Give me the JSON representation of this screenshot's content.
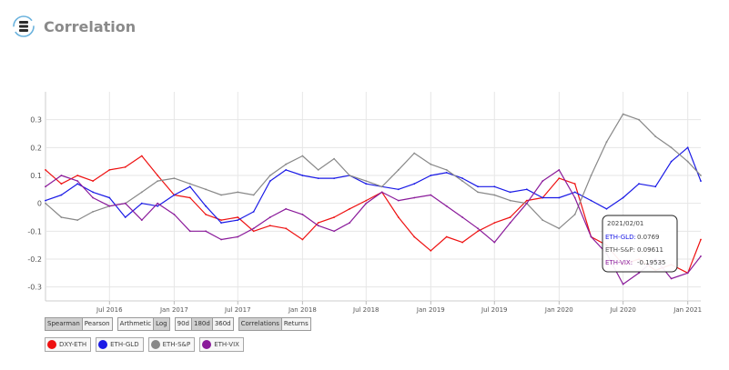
{
  "header": {
    "title": "Correlation"
  },
  "chart_data": {
    "type": "line",
    "ylim": [
      -0.35,
      0.4
    ],
    "y_ticks": [
      {
        "value": 0.3,
        "label": "0.3"
      },
      {
        "value": 0.2,
        "label": "0.2"
      },
      {
        "value": 0.1,
        "label": "0.1"
      },
      {
        "value": 0,
        "label": "0"
      },
      {
        "value": -0.1,
        "label": "-0.1"
      },
      {
        "value": -0.2,
        "label": "-0.2"
      },
      {
        "value": -0.3,
        "label": "-0.3"
      }
    ],
    "x_start": "2016-01-01",
    "x_end": "2021-02-07",
    "x_ticks": [
      {
        "date": "2016-07-01",
        "label": "Jul 2016"
      },
      {
        "date": "2017-01-01",
        "label": "Jan 2017"
      },
      {
        "date": "2017-07-01",
        "label": "Jul 2017"
      },
      {
        "date": "2018-01-01",
        "label": "Jan 2018"
      },
      {
        "date": "2018-07-01",
        "label": "Jul 2018"
      },
      {
        "date": "2019-01-01",
        "label": "Jan 2019"
      },
      {
        "date": "2019-07-01",
        "label": "Jul 2019"
      },
      {
        "date": "2020-01-01",
        "label": "Jan 2020"
      },
      {
        "date": "2020-07-01",
        "label": "Jul 2020"
      },
      {
        "date": "2021-01-01",
        "label": "Jan 2021"
      }
    ],
    "grid": true,
    "series": [
      {
        "name": "DXY-ETH",
        "color": "#ee1111",
        "values": [
          [
            "2016-01-01",
            0.12
          ],
          [
            "2016-02-15",
            0.07
          ],
          [
            "2016-04-01",
            0.1
          ],
          [
            "2016-05-15",
            0.08
          ],
          [
            "2016-07-01",
            0.12
          ],
          [
            "2016-08-15",
            0.13
          ],
          [
            "2016-10-01",
            0.17
          ],
          [
            "2016-11-15",
            0.1
          ],
          [
            "2017-01-01",
            0.03
          ],
          [
            "2017-02-15",
            0.02
          ],
          [
            "2017-04-01",
            -0.04
          ],
          [
            "2017-05-15",
            -0.06
          ],
          [
            "2017-07-01",
            -0.05
          ],
          [
            "2017-08-15",
            -0.1
          ],
          [
            "2017-10-01",
            -0.08
          ],
          [
            "2017-11-15",
            -0.09
          ],
          [
            "2018-01-01",
            -0.13
          ],
          [
            "2018-02-15",
            -0.07
          ],
          [
            "2018-04-01",
            -0.05
          ],
          [
            "2018-05-15",
            -0.02
          ],
          [
            "2018-07-01",
            0.01
          ],
          [
            "2018-08-15",
            0.04
          ],
          [
            "2018-10-01",
            -0.05
          ],
          [
            "2018-11-15",
            -0.12
          ],
          [
            "2019-01-01",
            -0.17
          ],
          [
            "2019-02-15",
            -0.12
          ],
          [
            "2019-04-01",
            -0.14
          ],
          [
            "2019-05-15",
            -0.1
          ],
          [
            "2019-07-01",
            -0.07
          ],
          [
            "2019-08-15",
            -0.05
          ],
          [
            "2019-10-01",
            0.01
          ],
          [
            "2019-11-15",
            0.02
          ],
          [
            "2020-01-01",
            0.09
          ],
          [
            "2020-02-15",
            0.07
          ],
          [
            "2020-04-01",
            -0.12
          ],
          [
            "2020-05-15",
            -0.15
          ],
          [
            "2020-07-01",
            -0.22
          ],
          [
            "2020-08-15",
            -0.2
          ],
          [
            "2020-10-01",
            -0.24
          ],
          [
            "2020-11-15",
            -0.22
          ],
          [
            "2021-01-01",
            -0.25
          ],
          [
            "2021-02-07",
            -0.13
          ]
        ]
      },
      {
        "name": "ETH-GLD",
        "color": "#1a1ae6",
        "values": [
          [
            "2016-01-01",
            0.01
          ],
          [
            "2016-02-15",
            0.03
          ],
          [
            "2016-04-01",
            0.07
          ],
          [
            "2016-05-15",
            0.04
          ],
          [
            "2016-07-01",
            0.02
          ],
          [
            "2016-08-15",
            -0.05
          ],
          [
            "2016-10-01",
            0.0
          ],
          [
            "2016-11-15",
            -0.01
          ],
          [
            "2017-01-01",
            0.03
          ],
          [
            "2017-02-15",
            0.06
          ],
          [
            "2017-04-01",
            -0.01
          ],
          [
            "2017-05-15",
            -0.07
          ],
          [
            "2017-07-01",
            -0.06
          ],
          [
            "2017-08-15",
            -0.03
          ],
          [
            "2017-10-01",
            0.08
          ],
          [
            "2017-11-15",
            0.12
          ],
          [
            "2018-01-01",
            0.1
          ],
          [
            "2018-02-15",
            0.09
          ],
          [
            "2018-04-01",
            0.09
          ],
          [
            "2018-05-15",
            0.1
          ],
          [
            "2018-07-01",
            0.07
          ],
          [
            "2018-08-15",
            0.06
          ],
          [
            "2018-10-01",
            0.05
          ],
          [
            "2018-11-15",
            0.07
          ],
          [
            "2019-01-01",
            0.1
          ],
          [
            "2019-02-15",
            0.11
          ],
          [
            "2019-04-01",
            0.09
          ],
          [
            "2019-05-15",
            0.06
          ],
          [
            "2019-07-01",
            0.06
          ],
          [
            "2019-08-15",
            0.04
          ],
          [
            "2019-10-01",
            0.05
          ],
          [
            "2019-11-15",
            0.02
          ],
          [
            "2020-01-01",
            0.02
          ],
          [
            "2020-02-15",
            0.04
          ],
          [
            "2020-04-01",
            0.01
          ],
          [
            "2020-05-15",
            -0.02
          ],
          [
            "2020-07-01",
            0.02
          ],
          [
            "2020-08-15",
            0.07
          ],
          [
            "2020-10-01",
            0.06
          ],
          [
            "2020-11-15",
            0.15
          ],
          [
            "2021-01-01",
            0.2
          ],
          [
            "2021-02-07",
            0.08
          ]
        ]
      },
      {
        "name": "ETH-S&P",
        "color": "#888888",
        "values": [
          [
            "2016-01-01",
            0.0
          ],
          [
            "2016-02-15",
            -0.05
          ],
          [
            "2016-04-01",
            -0.06
          ],
          [
            "2016-05-15",
            -0.03
          ],
          [
            "2016-07-01",
            -0.01
          ],
          [
            "2016-08-15",
            0.0
          ],
          [
            "2016-10-01",
            0.04
          ],
          [
            "2016-11-15",
            0.08
          ],
          [
            "2017-01-01",
            0.09
          ],
          [
            "2017-02-15",
            0.07
          ],
          [
            "2017-04-01",
            0.05
          ],
          [
            "2017-05-15",
            0.03
          ],
          [
            "2017-07-01",
            0.04
          ],
          [
            "2017-08-15",
            0.03
          ],
          [
            "2017-10-01",
            0.1
          ],
          [
            "2017-11-15",
            0.14
          ],
          [
            "2018-01-01",
            0.17
          ],
          [
            "2018-02-15",
            0.12
          ],
          [
            "2018-04-01",
            0.16
          ],
          [
            "2018-05-15",
            0.1
          ],
          [
            "2018-07-01",
            0.08
          ],
          [
            "2018-08-15",
            0.06
          ],
          [
            "2018-10-01",
            0.12
          ],
          [
            "2018-11-15",
            0.18
          ],
          [
            "2019-01-01",
            0.14
          ],
          [
            "2019-02-15",
            0.12
          ],
          [
            "2019-04-01",
            0.08
          ],
          [
            "2019-05-15",
            0.04
          ],
          [
            "2019-07-01",
            0.03
          ],
          [
            "2019-08-15",
            0.01
          ],
          [
            "2019-10-01",
            0.0
          ],
          [
            "2019-11-15",
            -0.06
          ],
          [
            "2020-01-01",
            -0.09
          ],
          [
            "2020-02-15",
            -0.04
          ],
          [
            "2020-04-01",
            0.1
          ],
          [
            "2020-05-15",
            0.22
          ],
          [
            "2020-07-01",
            0.32
          ],
          [
            "2020-08-15",
            0.3
          ],
          [
            "2020-10-01",
            0.24
          ],
          [
            "2020-11-15",
            0.2
          ],
          [
            "2021-01-01",
            0.15
          ],
          [
            "2021-02-07",
            0.1
          ]
        ]
      },
      {
        "name": "ETH-VIX",
        "color": "#8a1a9a",
        "values": [
          [
            "2016-01-01",
            0.06
          ],
          [
            "2016-02-15",
            0.1
          ],
          [
            "2016-04-01",
            0.08
          ],
          [
            "2016-05-15",
            0.02
          ],
          [
            "2016-07-01",
            -0.01
          ],
          [
            "2016-08-15",
            0.0
          ],
          [
            "2016-10-01",
            -0.06
          ],
          [
            "2016-11-15",
            0.0
          ],
          [
            "2017-01-01",
            -0.04
          ],
          [
            "2017-02-15",
            -0.1
          ],
          [
            "2017-04-01",
            -0.1
          ],
          [
            "2017-05-15",
            -0.13
          ],
          [
            "2017-07-01",
            -0.12
          ],
          [
            "2017-08-15",
            -0.09
          ],
          [
            "2017-10-01",
            -0.05
          ],
          [
            "2017-11-15",
            -0.02
          ],
          [
            "2018-01-01",
            -0.04
          ],
          [
            "2018-02-15",
            -0.08
          ],
          [
            "2018-04-01",
            -0.1
          ],
          [
            "2018-05-15",
            -0.07
          ],
          [
            "2018-07-01",
            0.0
          ],
          [
            "2018-08-15",
            0.04
          ],
          [
            "2018-10-01",
            0.01
          ],
          [
            "2018-11-15",
            0.02
          ],
          [
            "2019-01-01",
            0.03
          ],
          [
            "2019-02-15",
            -0.01
          ],
          [
            "2019-04-01",
            -0.05
          ],
          [
            "2019-05-15",
            -0.09
          ],
          [
            "2019-07-01",
            -0.14
          ],
          [
            "2019-08-15",
            -0.07
          ],
          [
            "2019-10-01",
            0.0
          ],
          [
            "2019-11-15",
            0.08
          ],
          [
            "2020-01-01",
            0.12
          ],
          [
            "2020-02-15",
            0.02
          ],
          [
            "2020-04-01",
            -0.12
          ],
          [
            "2020-05-15",
            -0.18
          ],
          [
            "2020-07-01",
            -0.29
          ],
          [
            "2020-08-15",
            -0.25
          ],
          [
            "2020-10-01",
            -0.2
          ],
          [
            "2020-11-15",
            -0.27
          ],
          [
            "2021-01-01",
            -0.25
          ],
          [
            "2021-02-07",
            -0.19
          ]
        ]
      }
    ]
  },
  "tooltip": {
    "date": "2021/02/01",
    "rows": [
      {
        "label": "ETH-GLD:",
        "value": "0.0769",
        "color": "#1a1ae6"
      },
      {
        "label": "ETH-S&P:",
        "value": "0.09611",
        "color": "#555555"
      },
      {
        "label": "ETH-VIX:",
        "value": "-0.19535",
        "color": "#8a1a9a"
      }
    ]
  },
  "controls": {
    "method": [
      {
        "label": "Spearman",
        "active": true
      },
      {
        "label": "Pearson",
        "active": false
      }
    ],
    "scale": [
      {
        "label": "Arthmetic",
        "active": false
      },
      {
        "label": "Log",
        "active": true
      }
    ],
    "window": [
      {
        "label": "90d",
        "active": false
      },
      {
        "label": "180d",
        "active": true
      },
      {
        "label": "360d",
        "active": false
      }
    ],
    "view": [
      {
        "label": "Correlations",
        "active": true
      },
      {
        "label": "Returns",
        "active": false
      }
    ]
  },
  "legend": [
    {
      "label": "DXY-ETH",
      "color": "#ee1111"
    },
    {
      "label": "ETH-GLD",
      "color": "#1a1ae6"
    },
    {
      "label": "ETH-S&P",
      "color": "#888888"
    },
    {
      "label": "ETH-VIX",
      "color": "#8a1a9a"
    }
  ]
}
